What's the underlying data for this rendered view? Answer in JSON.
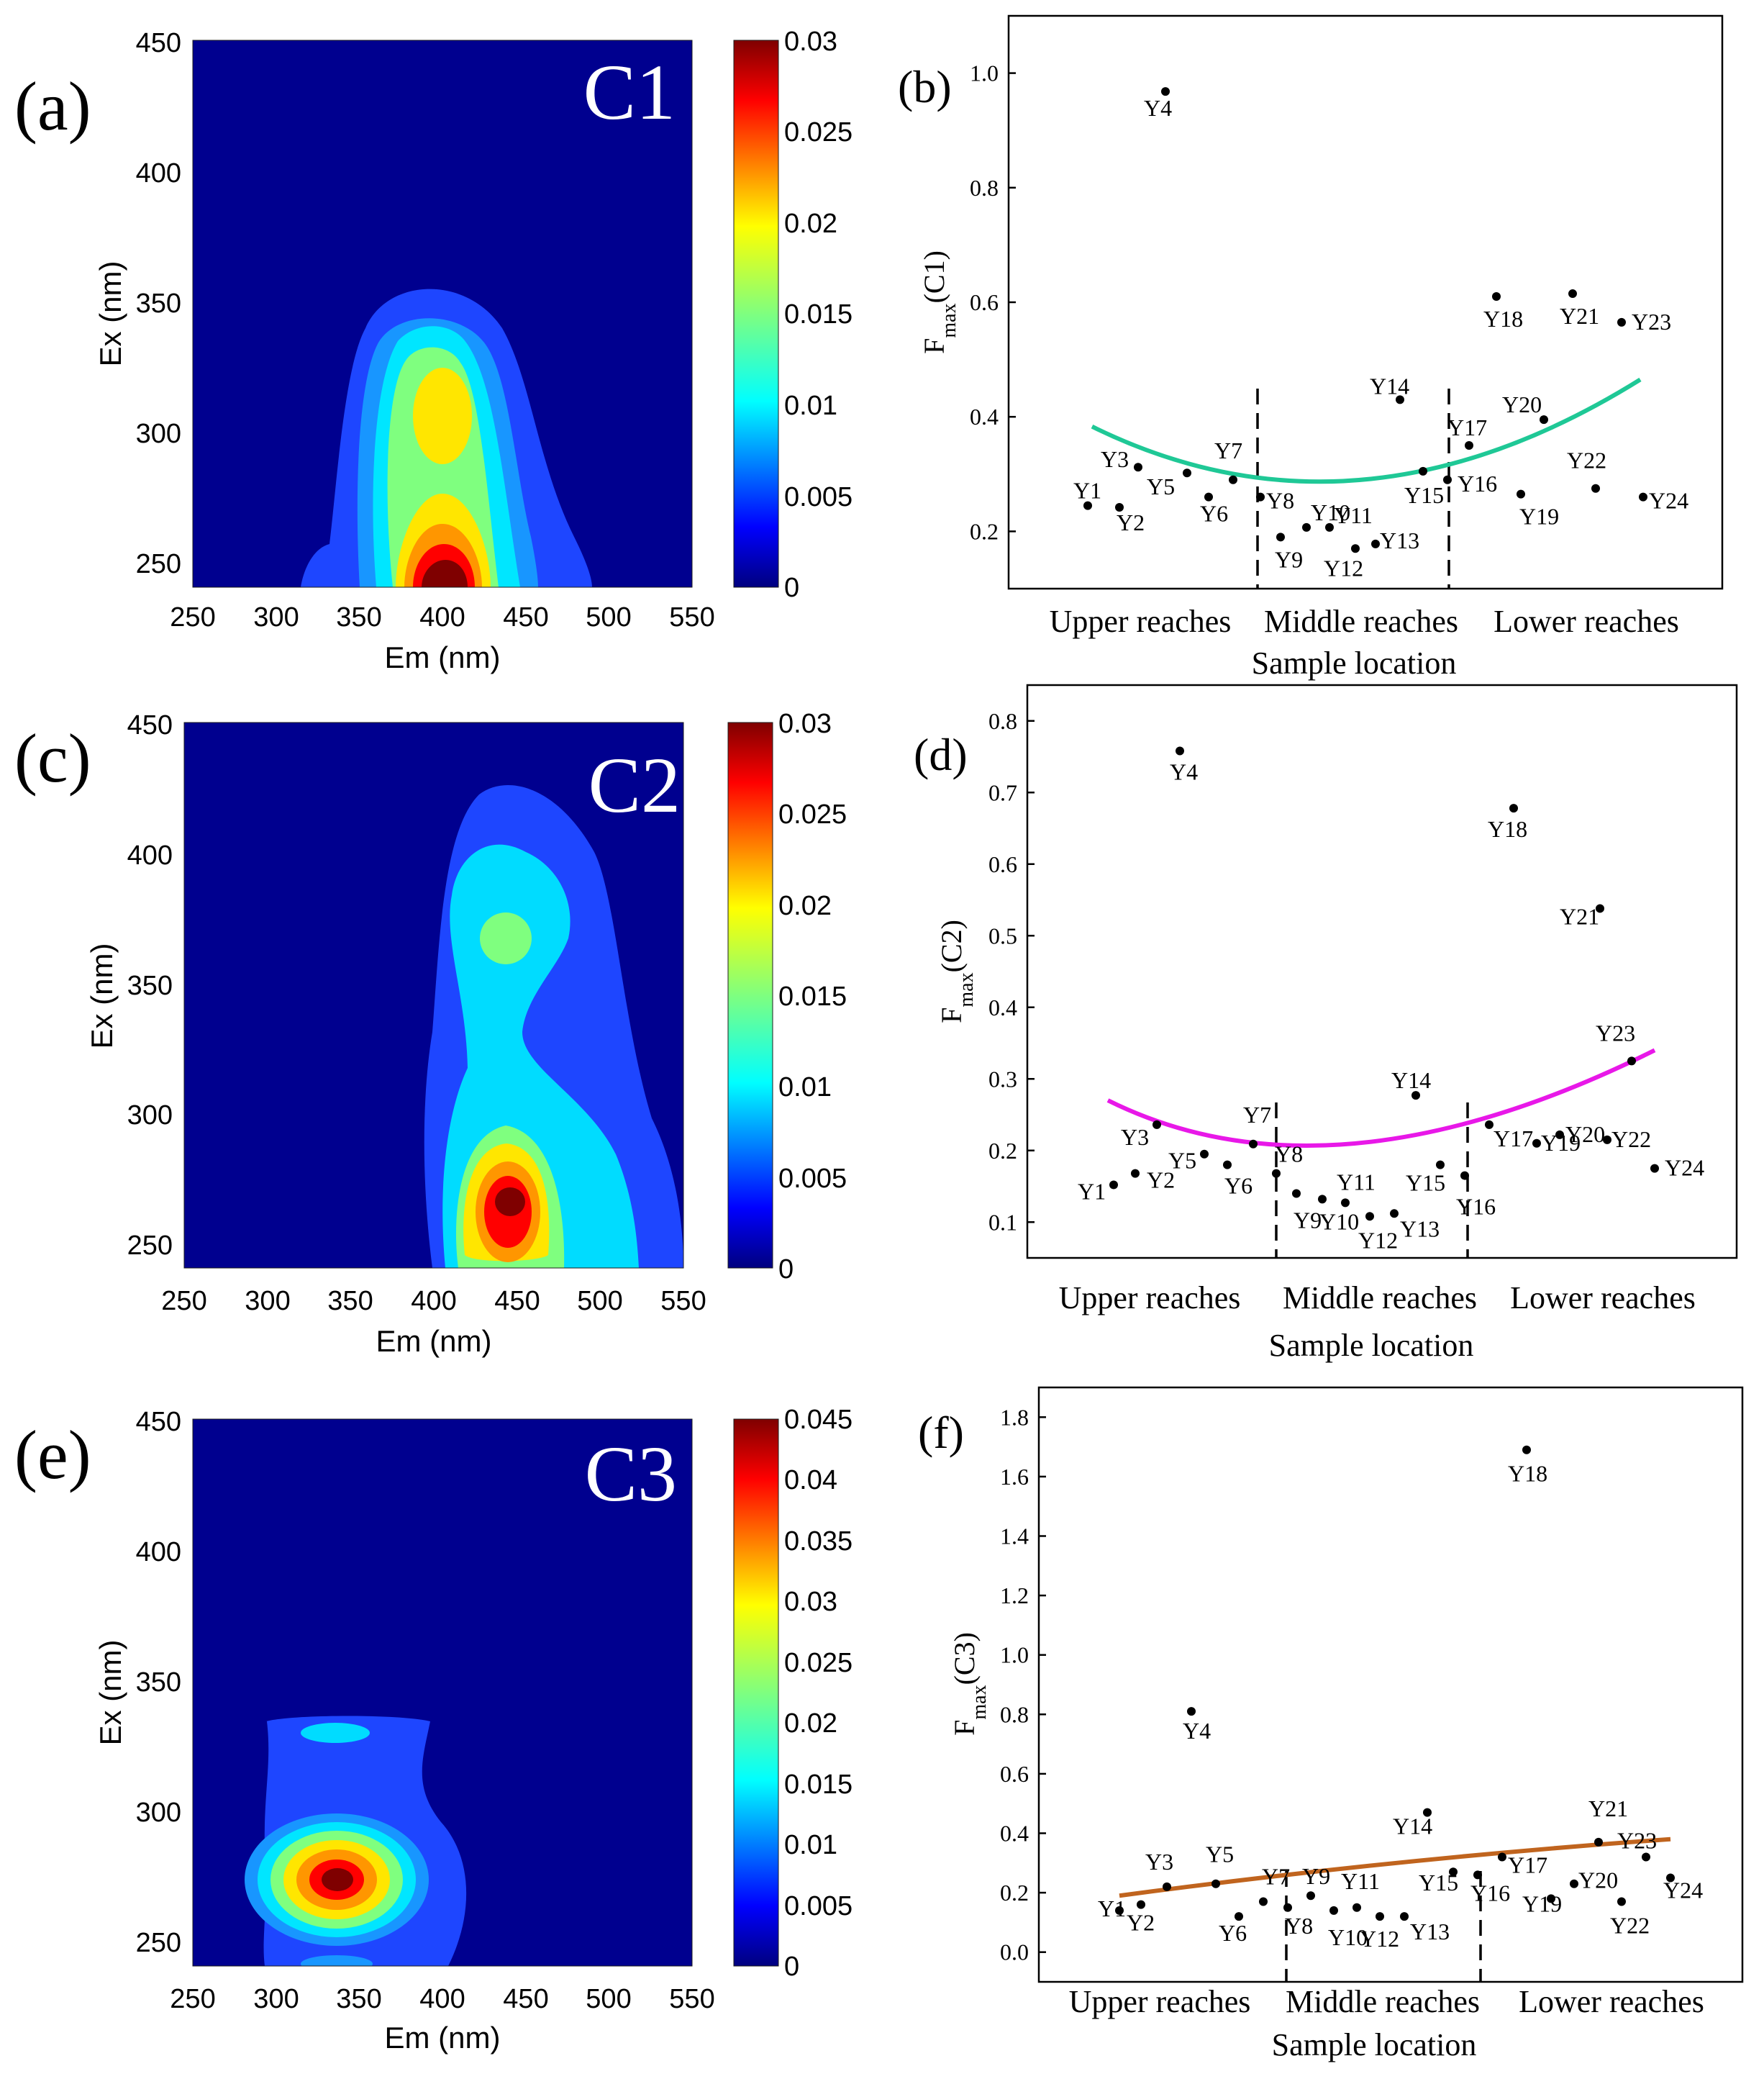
{
  "chart_data": [
    {
      "id": "a",
      "type": "heatmap",
      "panel_label": "(a)",
      "component": "C1",
      "xlabel": "Em (nm)",
      "ylabel": "Ex (nm)",
      "xlim": [
        250,
        550
      ],
      "ylim": [
        240,
        450
      ],
      "xticks": [
        "250",
        "300",
        "350",
        "400",
        "450",
        "500",
        "550"
      ],
      "yticks": [
        "250",
        "300",
        "350",
        "400",
        "450"
      ],
      "colorbar": {
        "min": 0,
        "max": 0.03,
        "ticks": [
          "0",
          "0.005",
          "0.01",
          "0.015",
          "0.02",
          "0.025",
          "0.03"
        ]
      },
      "peaks": [
        {
          "em": 400,
          "ex": 240,
          "value": 0.03
        },
        {
          "em": 400,
          "ex": 305,
          "value": 0.02
        }
      ]
    },
    {
      "id": "b",
      "type": "scatter",
      "panel_label": "(b)",
      "xlabel": "Sample location",
      "ylabel": "Fmax(C1)",
      "ylim": [
        0.1,
        1.1
      ],
      "yticks": [
        "0.2",
        "0.4",
        "0.6",
        "0.8",
        "1.0"
      ],
      "categories": [
        "Upper reaches",
        "Middle reaches",
        "Lower reaches"
      ],
      "x": [
        "Y1",
        "Y2",
        "Y3",
        "Y4",
        "Y5",
        "Y6",
        "Y7",
        "Y8",
        "Y9",
        "Y10",
        "Y11",
        "Y12",
        "Y13",
        "Y14",
        "Y15",
        "Y16",
        "Y17",
        "Y18",
        "Y19",
        "Y20",
        "Y21",
        "Y22",
        "Y23",
        "Y24"
      ],
      "values": [
        0.245,
        0.242,
        0.312,
        0.968,
        0.302,
        0.26,
        0.29,
        0.26,
        0.19,
        0.207,
        0.207,
        0.17,
        0.178,
        0.43,
        0.305,
        0.29,
        0.35,
        0.61,
        0.265,
        0.395,
        0.615,
        0.275,
        0.565,
        0.26
      ],
      "fit": {
        "y_start": 0.383,
        "y_min": 0.29,
        "y_end": 0.465
      }
    },
    {
      "id": "c",
      "type": "heatmap",
      "panel_label": "(c)",
      "component": "C2",
      "xlabel": "Em (nm)",
      "ylabel": "Ex (nm)",
      "xlim": [
        250,
        550
      ],
      "ylim": [
        240,
        450
      ],
      "xticks": [
        "250",
        "300",
        "350",
        "400",
        "450",
        "500",
        "550"
      ],
      "yticks": [
        "250",
        "300",
        "350",
        "400",
        "450"
      ],
      "colorbar": {
        "min": 0,
        "max": 0.03,
        "ticks": [
          "0",
          "0.005",
          "0.01",
          "0.015",
          "0.02",
          "0.025",
          "0.03"
        ]
      },
      "peaks": [
        {
          "em": 448,
          "ex": 270,
          "value": 0.03
        },
        {
          "em": 446,
          "ex": 368,
          "value": 0.016
        }
      ]
    },
    {
      "id": "d",
      "type": "scatter",
      "panel_label": "(d)",
      "xlabel": "Sample location",
      "ylabel": "Fmax(C2)",
      "ylim": [
        0.05,
        0.85
      ],
      "yticks": [
        "0.1",
        "0.2",
        "0.3",
        "0.4",
        "0.5",
        "0.6",
        "0.7",
        "0.8"
      ],
      "categories": [
        "Upper reaches",
        "Middle reaches",
        "Lower reaches"
      ],
      "x": [
        "Y1",
        "Y2",
        "Y3",
        "Y4",
        "Y5",
        "Y6",
        "Y7",
        "Y8",
        "Y9",
        "Y10",
        "Y11",
        "Y12",
        "Y13",
        "Y14",
        "Y15",
        "Y16",
        "Y17",
        "Y18",
        "Y19",
        "Y20",
        "Y21",
        "Y22",
        "Y23",
        "Y24"
      ],
      "values": [
        0.152,
        0.168,
        0.236,
        0.758,
        0.195,
        0.18,
        0.209,
        0.168,
        0.14,
        0.132,
        0.127,
        0.108,
        0.112,
        0.277,
        0.18,
        0.165,
        0.236,
        0.678,
        0.21,
        0.222,
        0.538,
        0.215,
        0.325,
        0.175
      ],
      "fit": {
        "y_start": 0.27,
        "y_min": 0.21,
        "y_end": 0.34
      }
    },
    {
      "id": "e",
      "type": "heatmap",
      "panel_label": "(e)",
      "component": "C3",
      "xlabel": "Em (nm)",
      "ylabel": "Ex (nm)",
      "xlim": [
        250,
        550
      ],
      "ylim": [
        240,
        450
      ],
      "xticks": [
        "250",
        "300",
        "350",
        "400",
        "450",
        "500",
        "550"
      ],
      "yticks": [
        "250",
        "300",
        "350",
        "400",
        "450"
      ],
      "colorbar": {
        "min": 0,
        "max": 0.045,
        "ticks": [
          "0",
          "0.005",
          "0.01",
          "0.015",
          "0.02",
          "0.025",
          "0.03",
          "0.035",
          "0.04",
          "0.045"
        ]
      },
      "peaks": [
        {
          "em": 340,
          "ex": 278,
          "value": 0.045
        },
        {
          "em": 340,
          "ex": 330,
          "value": 0.012
        }
      ]
    },
    {
      "id": "f",
      "type": "scatter",
      "panel_label": "(f)",
      "xlabel": "Sample location",
      "ylabel": "Fmax(C3)",
      "ylim": [
        -0.1,
        1.9
      ],
      "yticks": [
        "0.0",
        "0.2",
        "0.4",
        "0.6",
        "0.8",
        "1.0",
        "1.2",
        "1.4",
        "1.6",
        "1.8"
      ],
      "categories": [
        "Upper reaches",
        "Middle reaches",
        "Lower reaches"
      ],
      "x": [
        "Y1",
        "Y2",
        "Y3",
        "Y4",
        "Y5",
        "Y6",
        "Y7",
        "Y8",
        "Y9",
        "Y10",
        "Y11",
        "Y12",
        "Y13",
        "Y14",
        "Y15",
        "Y16",
        "Y17",
        "Y18",
        "Y19",
        "Y20",
        "Y21",
        "Y22",
        "Y23",
        "Y24"
      ],
      "values": [
        0.14,
        0.16,
        0.22,
        0.81,
        0.23,
        0.12,
        0.17,
        0.15,
        0.19,
        0.14,
        0.15,
        0.12,
        0.12,
        0.47,
        0.27,
        0.26,
        0.32,
        1.69,
        0.18,
        0.23,
        0.37,
        0.17,
        0.32,
        0.25
      ],
      "fit": {
        "y_start": 0.19,
        "y_end": 0.38
      }
    }
  ]
}
